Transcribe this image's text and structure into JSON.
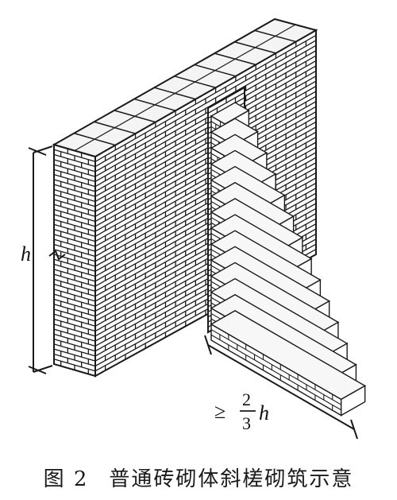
{
  "labels": {
    "height_symbol": "h",
    "length_prefix": "≥",
    "fraction_numerator": "2",
    "fraction_denominator": "3",
    "length_symbol": "h"
  },
  "caption": {
    "figure_number": "图 2",
    "title": "普通砖砌体斜槎砌筑示意"
  },
  "colors": {
    "stroke": "#1a1a1a",
    "background": "#ffffff",
    "brick_top": "#f4f4f4"
  }
}
